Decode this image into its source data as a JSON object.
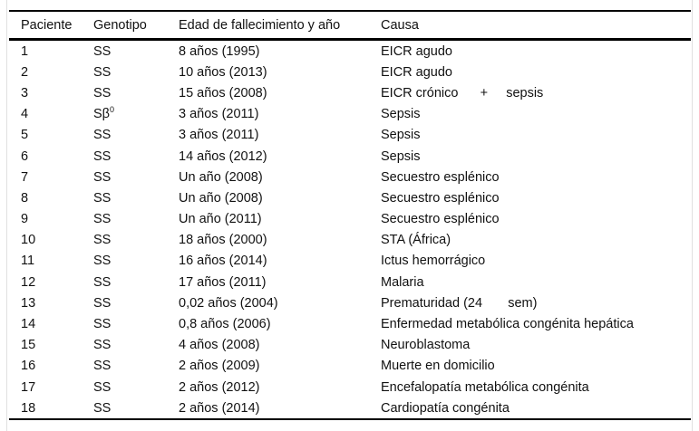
{
  "colors": {
    "background": "#ffffff",
    "text": "#111111",
    "rule": "#000000",
    "frame": "#e0e0e0"
  },
  "table": {
    "columns": [
      {
        "key": "paciente",
        "label": "Paciente"
      },
      {
        "key": "genotipo",
        "label": "Genotipo"
      },
      {
        "key": "edad",
        "label": "Edad de fallecimiento y año"
      },
      {
        "key": "causa",
        "label": "Causa"
      }
    ],
    "rows": [
      {
        "paciente": "1",
        "genotipo": "SS",
        "edad": "8 años (1995)",
        "causa": "EICR agudo"
      },
      {
        "paciente": "2",
        "genotipo": "SS",
        "edad": "10 años (2013)",
        "causa": "EICR agudo"
      },
      {
        "paciente": "3",
        "genotipo": "SS",
        "edad": "15 años (2008)",
        "causa": "EICR crónico      +     sepsis"
      },
      {
        "paciente": "4",
        "genotipo": "Sβ",
        "genotipo_sup": "0",
        "edad": "3 años (2011)",
        "causa": "Sepsis"
      },
      {
        "paciente": "5",
        "genotipo": "SS",
        "edad": "3 años (2011)",
        "causa": "Sepsis"
      },
      {
        "paciente": "6",
        "genotipo": "SS",
        "edad": "14 años (2012)",
        "causa": "Sepsis"
      },
      {
        "paciente": "7",
        "genotipo": "SS",
        "edad": "Un año (2008)",
        "causa": "Secuestro esplénico"
      },
      {
        "paciente": "8",
        "genotipo": "SS",
        "edad": "Un año (2008)",
        "causa": "Secuestro esplénico"
      },
      {
        "paciente": "9",
        "genotipo": "SS",
        "edad": "Un año (2011)",
        "causa": "Secuestro esplénico"
      },
      {
        "paciente": "10",
        "genotipo": "SS",
        "edad": "18 años (2000)",
        "causa": "STA (África)"
      },
      {
        "paciente": "11",
        "genotipo": "SS",
        "edad": "16 años (2014)",
        "causa": "Ictus hemorrágico"
      },
      {
        "paciente": "12",
        "genotipo": "SS",
        "edad": "17 años (2011)",
        "causa": "Malaria"
      },
      {
        "paciente": "13",
        "genotipo": "SS",
        "edad": "0,02 años (2004)",
        "causa": "Prematuridad (24       sem)"
      },
      {
        "paciente": "14",
        "genotipo": "SS",
        "edad": "0,8 años (2006)",
        "causa": "Enfermedad metabólica congénita hepática"
      },
      {
        "paciente": "15",
        "genotipo": "SS",
        "edad": "4 años (2008)",
        "causa": "Neuroblastoma"
      },
      {
        "paciente": "16",
        "genotipo": "SS",
        "edad": "2 años (2009)",
        "causa": "Muerte en domicilio"
      },
      {
        "paciente": "17",
        "genotipo": "SS",
        "edad": "2 años (2012)",
        "causa": "Encefalopatía metabólica congénita"
      },
      {
        "paciente": "18",
        "genotipo": "SS",
        "edad": "2 años (2014)",
        "causa": "Cardiopatía congénita"
      }
    ]
  }
}
